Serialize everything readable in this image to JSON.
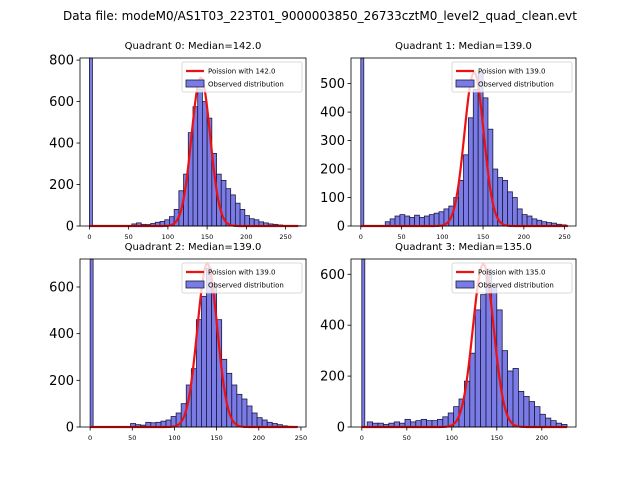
{
  "suptitle": "Data file: modeM0/AS1T03_223T01_9000003850_26733cztM0_level2_quad_clean.evt",
  "colors": {
    "bar_fill": "#7b7be6",
    "bar_edge": "#1a1a40",
    "curve": "#ee1111"
  },
  "chart_data": [
    {
      "type": "bar",
      "title": "Quadrant 0: Median=142.0",
      "xlim": [
        -12,
        276
      ],
      "ylim": [
        0,
        810
      ],
      "xticks": [
        0,
        50,
        100,
        150,
        200,
        250
      ],
      "yticks": [
        0,
        200,
        400,
        600,
        800
      ],
      "bin_width": 6,
      "spike": {
        "x": 0,
        "value": 810
      },
      "bin_starts": [
        54,
        60,
        66,
        72,
        78,
        84,
        90,
        96,
        102,
        108,
        114,
        120,
        126,
        132,
        138,
        144,
        150,
        156,
        162,
        168,
        174,
        180,
        186,
        192,
        198,
        204,
        210,
        216,
        222,
        228,
        234,
        240,
        246,
        252,
        258,
        264
      ],
      "values": [
        10,
        15,
        8,
        7,
        12,
        18,
        22,
        30,
        45,
        80,
        170,
        250,
        450,
        575,
        660,
        600,
        520,
        350,
        250,
        220,
        180,
        150,
        110,
        80,
        50,
        35,
        30,
        20,
        15,
        10,
        8,
        5,
        3,
        2,
        1,
        1
      ],
      "poisson_mean": 142.0,
      "poisson_peak": 715,
      "legend": [
        "Poission with 142.0",
        "Observed distribution"
      ]
    },
    {
      "type": "bar",
      "title": "Quadrant 1: Median=139.0",
      "xlim": [
        -12,
        264
      ],
      "ylim": [
        0,
        590
      ],
      "xticks": [
        0,
        50,
        100,
        150,
        200,
        250
      ],
      "yticks": [
        0,
        100,
        200,
        300,
        400,
        500
      ],
      "bin_width": 6,
      "spike": {
        "x": 0,
        "value": 590
      },
      "bin_starts": [
        30,
        36,
        42,
        48,
        54,
        60,
        66,
        72,
        78,
        84,
        90,
        96,
        102,
        108,
        114,
        120,
        126,
        132,
        138,
        144,
        150,
        156,
        162,
        168,
        174,
        180,
        186,
        192,
        198,
        204,
        210,
        216,
        222,
        228,
        234,
        240,
        246
      ],
      "values": [
        15,
        25,
        35,
        40,
        35,
        30,
        38,
        30,
        35,
        40,
        45,
        50,
        60,
        70,
        100,
        160,
        250,
        380,
        480,
        540,
        450,
        340,
        200,
        170,
        160,
        120,
        100,
        60,
        40,
        35,
        25,
        20,
        15,
        12,
        10,
        6,
        4
      ],
      "poisson_mean": 139.0,
      "poisson_peak": 540,
      "legend": [
        "Poission with 139.0",
        "Observed distribution"
      ]
    },
    {
      "type": "bar",
      "title": "Quadrant 2: Median=139.0",
      "xlim": [
        -12,
        256
      ],
      "ylim": [
        0,
        720
      ],
      "xticks": [
        0,
        50,
        100,
        150,
        200,
        250
      ],
      "yticks": [
        0,
        200,
        400,
        600
      ],
      "bin_width": 6,
      "spike": {
        "x": 0,
        "value": 720
      },
      "bin_starts": [
        48,
        54,
        60,
        66,
        72,
        78,
        84,
        90,
        96,
        102,
        108,
        114,
        120,
        126,
        132,
        138,
        144,
        150,
        156,
        162,
        168,
        174,
        180,
        186,
        192,
        198,
        204,
        210,
        216,
        222,
        228,
        234,
        240
      ],
      "values": [
        15,
        10,
        8,
        20,
        18,
        20,
        25,
        30,
        45,
        60,
        100,
        180,
        250,
        460,
        560,
        680,
        610,
        460,
        290,
        230,
        180,
        140,
        120,
        90,
        60,
        40,
        30,
        20,
        15,
        10,
        5,
        3,
        2
      ],
      "poisson_mean": 139.0,
      "poisson_peak": 700,
      "legend": [
        "Poission with 139.0",
        "Observed distribution"
      ]
    },
    {
      "type": "bar",
      "title": "Quadrant 3: Median=135.0",
      "xlim": [
        -12,
        238
      ],
      "ylim": [
        0,
        660
      ],
      "xticks": [
        0,
        50,
        100,
        150,
        200
      ],
      "yticks": [
        0,
        200,
        400,
        600
      ],
      "bin_width": 6,
      "spike": {
        "x": 0,
        "value": 660
      },
      "bin_starts": [
        6,
        12,
        18,
        24,
        30,
        36,
        42,
        48,
        54,
        60,
        66,
        72,
        78,
        84,
        90,
        96,
        102,
        108,
        114,
        120,
        126,
        132,
        138,
        144,
        150,
        156,
        162,
        168,
        174,
        180,
        186,
        192,
        198,
        204,
        210,
        216,
        222
      ],
      "values": [
        20,
        15,
        15,
        10,
        15,
        20,
        15,
        30,
        20,
        25,
        30,
        25,
        25,
        30,
        40,
        55,
        80,
        110,
        180,
        290,
        460,
        520,
        620,
        550,
        460,
        300,
        220,
        230,
        140,
        120,
        100,
        80,
        50,
        35,
        25,
        15,
        10
      ],
      "poisson_mean": 135.0,
      "poisson_peak": 640,
      "legend": [
        "Poission with 135.0",
        "Observed distribution"
      ]
    }
  ]
}
